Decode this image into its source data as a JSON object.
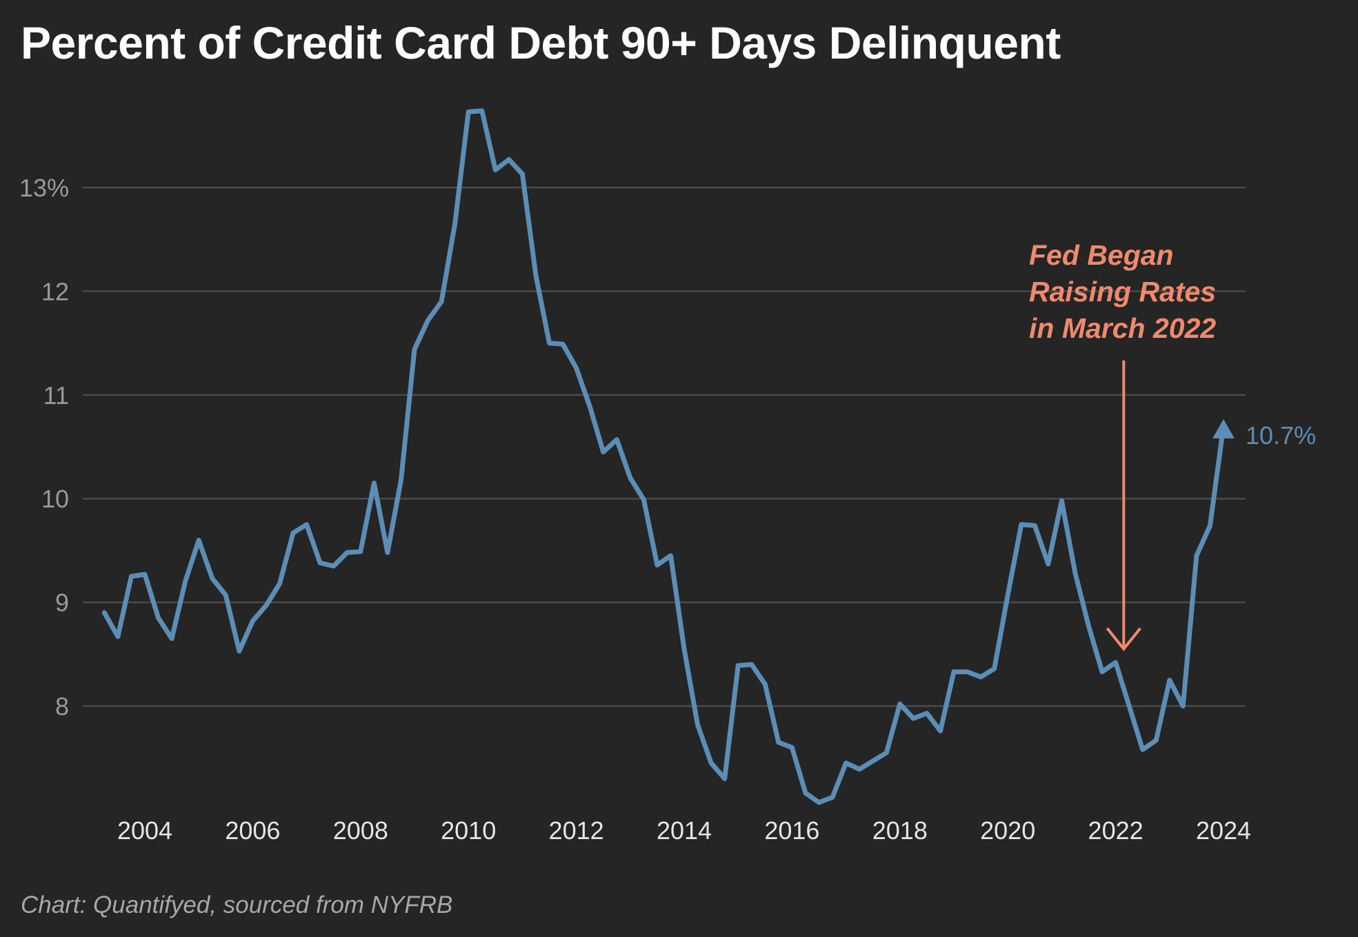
{
  "title": "Percent of Credit Card Debt 90+ Days Delinquent",
  "source": "Chart: Quantifyed, sourced from NYFRB",
  "colors": {
    "background": "#252525",
    "line": "#5b8db5",
    "annotation": "#f08a6e",
    "grid": "#4a4a4a",
    "ytick": "#9a9a9a",
    "xtick": "#e6e6e6"
  },
  "chart_data": {
    "type": "line",
    "title": "Percent of Credit Card Debt 90+ Days Delinquent",
    "xlabel": "",
    "ylabel": "",
    "xlim": [
      2003,
      2024.75
    ],
    "ylim": [
      7,
      13.9
    ],
    "grid": true,
    "yticks": [
      {
        "value": 13,
        "label": "13%"
      },
      {
        "value": 12,
        "label": "12"
      },
      {
        "value": 11,
        "label": "11"
      },
      {
        "value": 10,
        "label": "10"
      },
      {
        "value": 9,
        "label": "9"
      },
      {
        "value": 8,
        "label": "8"
      }
    ],
    "xticks": [
      {
        "value": 2004,
        "label": "2004"
      },
      {
        "value": 2006,
        "label": "2006"
      },
      {
        "value": 2008,
        "label": "2008"
      },
      {
        "value": 2010,
        "label": "2010"
      },
      {
        "value": 2012,
        "label": "2012"
      },
      {
        "value": 2014,
        "label": "2014"
      },
      {
        "value": 2016,
        "label": "2016"
      },
      {
        "value": 2018,
        "label": "2018"
      },
      {
        "value": 2020,
        "label": "2020"
      },
      {
        "value": 2022,
        "label": "2022"
      },
      {
        "value": 2024,
        "label": "2024"
      }
    ],
    "series": [
      {
        "x": [
          2003.25,
          2003.5,
          2003.75,
          2004.0,
          2004.25,
          2004.5,
          2004.75,
          2005.0,
          2005.25,
          2005.5,
          2005.75,
          2006.0,
          2006.25,
          2006.5,
          2006.75,
          2007.0,
          2007.25,
          2007.5,
          2007.75,
          2008.0,
          2008.25,
          2008.5,
          2008.75,
          2009.0,
          2009.25,
          2009.5,
          2009.75,
          2010.0,
          2010.25,
          2010.5,
          2010.75,
          2011.0,
          2011.25,
          2011.5,
          2011.75,
          2012.0,
          2012.25,
          2012.5,
          2012.75,
          2013.0,
          2013.25,
          2013.5,
          2013.75,
          2014.0,
          2014.25,
          2014.5,
          2014.75,
          2015.0,
          2015.25,
          2015.5,
          2015.75,
          2016.0,
          2016.25,
          2016.5,
          2016.75,
          2017.0,
          2017.25,
          2017.5,
          2017.75,
          2018.0,
          2018.25,
          2018.5,
          2018.75,
          2019.0,
          2019.25,
          2019.5,
          2019.75,
          2020.0,
          2020.25,
          2020.5,
          2020.75,
          2021.0,
          2021.25,
          2021.5,
          2021.75,
          2022.0,
          2022.25,
          2022.5,
          2022.75,
          2023.0,
          2023.25,
          2023.5,
          2023.75,
          2024.0
        ],
        "y": [
          8.9,
          8.67,
          9.25,
          9.27,
          8.85,
          8.65,
          9.2,
          9.6,
          9.23,
          9.07,
          8.53,
          8.82,
          8.97,
          9.18,
          9.67,
          9.75,
          9.38,
          9.35,
          9.48,
          9.49,
          10.15,
          9.48,
          10.18,
          11.44,
          11.72,
          11.9,
          12.65,
          13.73,
          13.74,
          13.17,
          13.27,
          13.13,
          12.15,
          11.5,
          11.49,
          11.26,
          10.89,
          10.45,
          10.57,
          10.2,
          9.99,
          9.36,
          9.45,
          8.55,
          7.82,
          7.45,
          7.3,
          8.39,
          8.4,
          8.21,
          7.65,
          7.6,
          7.16,
          7.07,
          7.12,
          7.45,
          7.39,
          7.47,
          7.55,
          8.02,
          7.88,
          7.93,
          7.76,
          8.33,
          8.33,
          8.28,
          8.36,
          9.07,
          9.75,
          9.74,
          9.37,
          9.98,
          9.28,
          8.77,
          8.33,
          8.42,
          8.0,
          7.58,
          7.67,
          8.25,
          8.0,
          9.45,
          9.74,
          10.7
        ]
      }
    ],
    "annotations": [
      {
        "lines": [
          "Fed Began",
          "Raising Rates",
          "in March 2022"
        ],
        "arrow": {
          "x": 2022.15,
          "y_from": 11.0,
          "y_to": 8.55
        }
      }
    ],
    "end_label": {
      "text": "10.7%",
      "x": 2024.0,
      "y": 10.7
    }
  }
}
